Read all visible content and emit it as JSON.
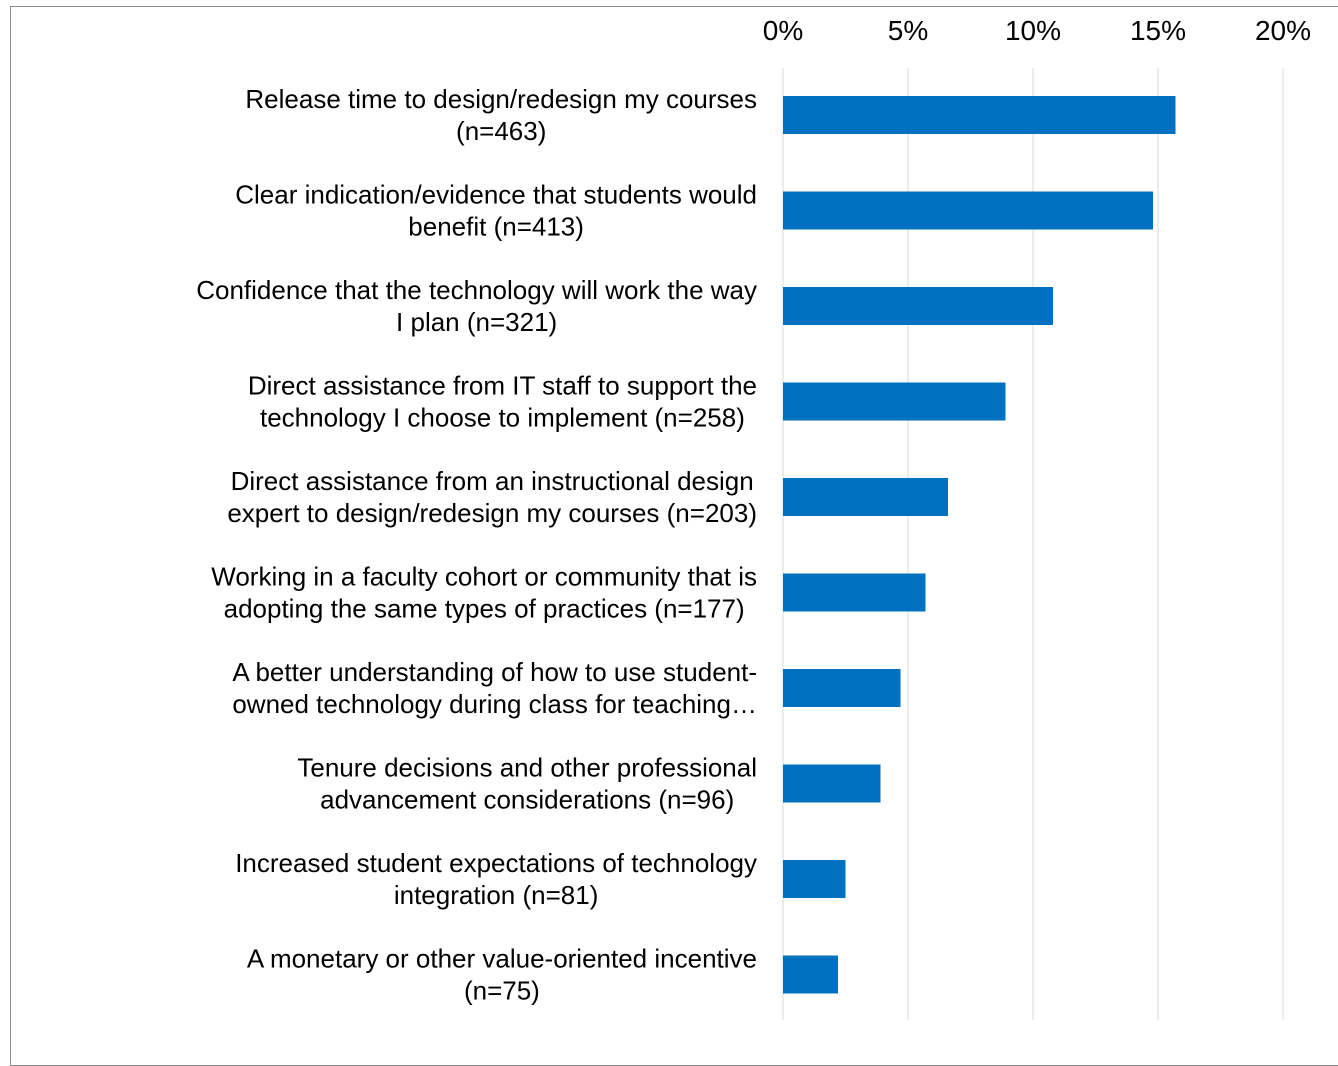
{
  "chart_data": {
    "type": "bar",
    "orientation": "horizontal",
    "title": "",
    "xlabel": "",
    "ylabel": "",
    "xlim": [
      0,
      20
    ],
    "x_ticks": [
      "0%",
      "5%",
      "10%",
      "15%",
      "20%"
    ],
    "x_tick_values": [
      0,
      5,
      10,
      15,
      20
    ],
    "x_axis_position": "top",
    "grid": true,
    "legend": "none",
    "bar_color": "#0070C0",
    "categories": [
      [
        "Release time to design/redesign my courses",
        "(n=463)"
      ],
      [
        "Clear indication/evidence that students would",
        "benefit (n=413)"
      ],
      [
        "Confidence that the technology will work the way",
        "I plan (n=321)"
      ],
      [
        "Direct assistance from IT staff to support the",
        "technology I choose to implement (n=258)"
      ],
      [
        "Direct assistance from an instructional design",
        "expert to design/redesign my courses (n=203)"
      ],
      [
        "Working in a faculty cohort or community that is",
        "adopting the same types of practices (n=177)"
      ],
      [
        "A better understanding of how to use student-",
        "owned technology during class for teaching…"
      ],
      [
        "Tenure decisions and other professional",
        "advancement considerations (n=96)"
      ],
      [
        "Increased student expectations of technology",
        "integration (n=81)"
      ],
      [
        "A monetary or other value-oriented incentive",
        "(n=75)"
      ]
    ],
    "values": [
      15.7,
      14.8,
      10.8,
      8.9,
      6.6,
      5.7,
      4.7,
      3.9,
      2.5,
      2.2
    ]
  }
}
